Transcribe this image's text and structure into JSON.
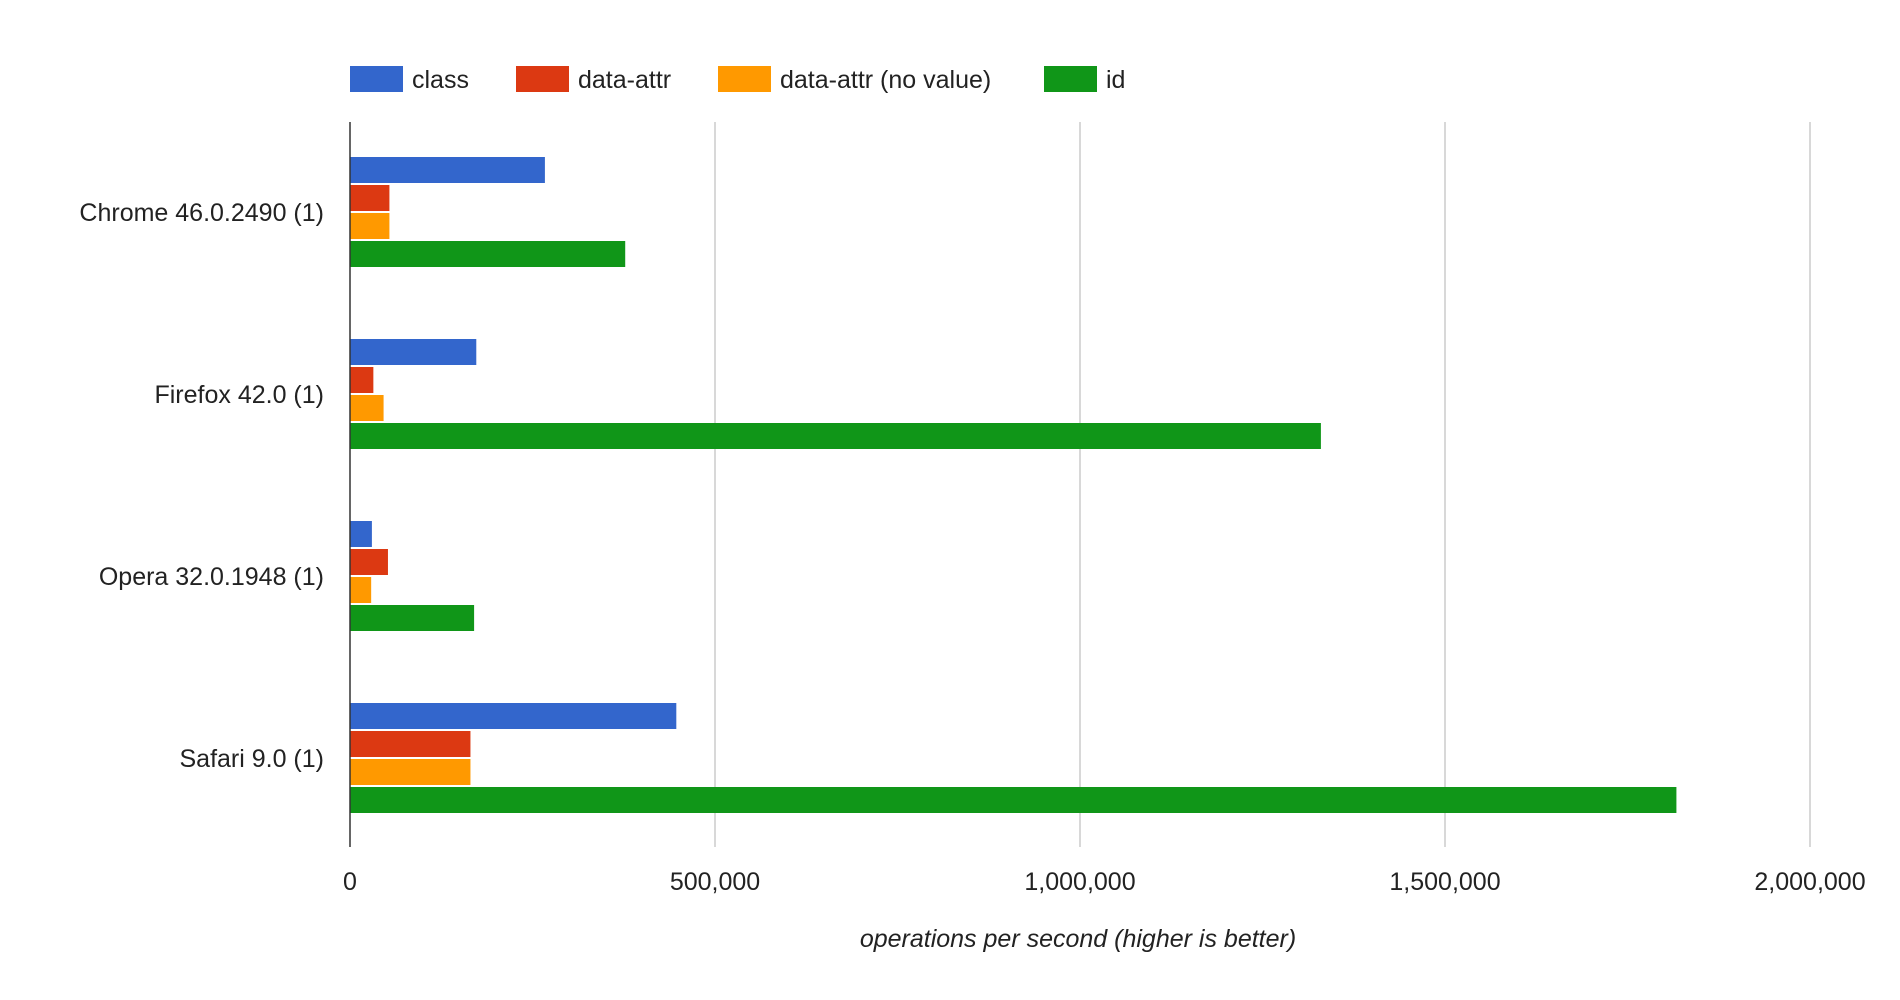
{
  "chart_data": {
    "type": "bar",
    "orientation": "horizontal",
    "title": "",
    "xlabel": "operations per second (higher is better)",
    "ylabel": "",
    "categories": [
      "Chrome 46.0.2490 (1)",
      "Firefox 42.0 (1)",
      "Opera 32.0.1948 (1)",
      "Safari 9.0 (1)"
    ],
    "series": [
      {
        "name": "class",
        "color": "#3366cc",
        "values": [
          267000,
          173000,
          30000,
          447000
        ]
      },
      {
        "name": "data-attr",
        "color": "#dc3912",
        "values": [
          54000,
          32000,
          52000,
          165000
        ]
      },
      {
        "name": "data-attr (no value)",
        "color": "#ff9900",
        "values": [
          54000,
          46000,
          29000,
          165000
        ]
      },
      {
        "name": "id",
        "color": "#109618",
        "values": [
          377000,
          1330000,
          170000,
          1817000
        ]
      }
    ],
    "xlim": [
      0,
      2000000
    ],
    "xticks": [
      0,
      500000,
      1000000,
      1500000,
      2000000
    ],
    "xtick_labels": [
      "0",
      "500,000",
      "1,000,000",
      "1,500,000",
      "2,000,000"
    ],
    "grid": true,
    "legend_position": "top"
  }
}
